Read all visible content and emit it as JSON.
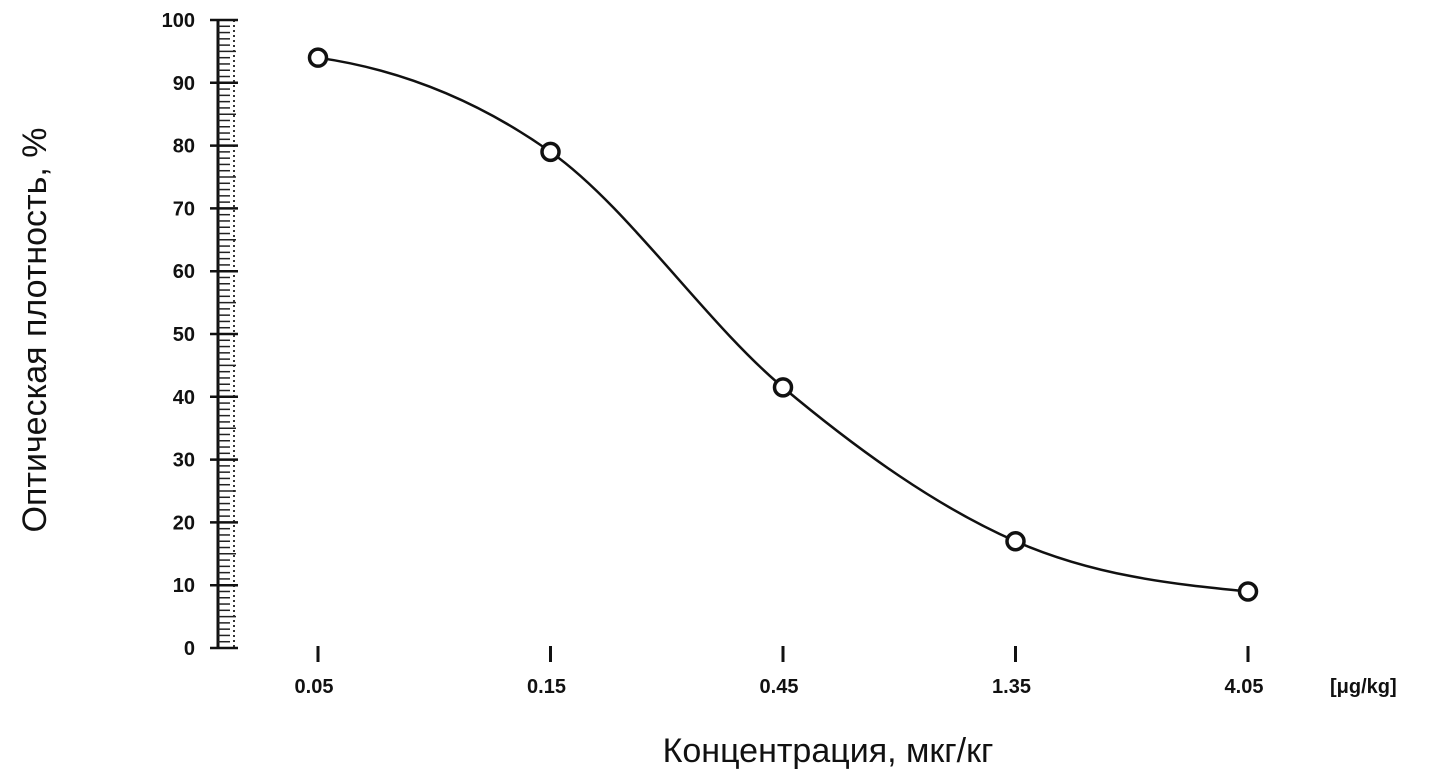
{
  "chart_data": {
    "type": "line",
    "x_scale": "log",
    "x": [
      0.05,
      0.15,
      0.45,
      1.35,
      4.05
    ],
    "x_tick_labels": [
      "0.05",
      "0.15",
      "0.45",
      "1.35",
      "4.05"
    ],
    "y_ticks": [
      0,
      10,
      20,
      30,
      40,
      50,
      60,
      70,
      80,
      90,
      100
    ],
    "series": [
      {
        "values": [
          94,
          79,
          41.5,
          17,
          9
        ]
      }
    ],
    "ylim": [
      0,
      100
    ],
    "xlabel": "Концентрация, мкг/кг",
    "ylabel": "Оптическая плотность, %",
    "x_unit": "[μg/kg]",
    "grid": false,
    "legend": "none",
    "line_color": "#111111",
    "marker_fill": "#ffffff"
  }
}
